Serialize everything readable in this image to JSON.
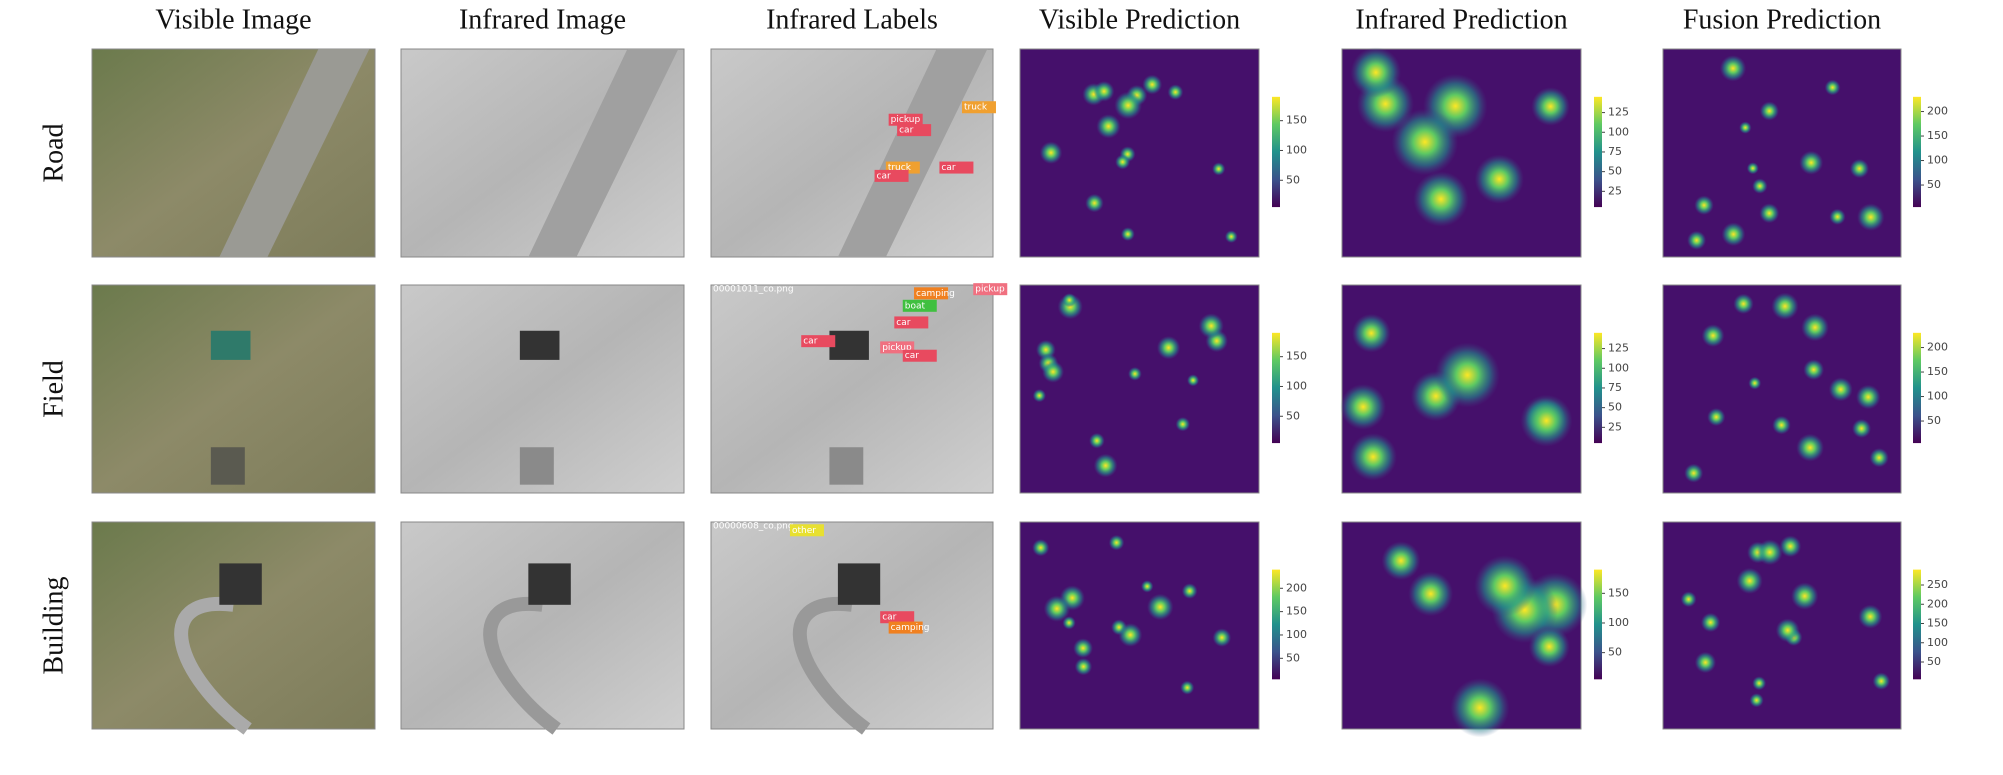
{
  "columns": [
    "Visible Image",
    "Infrared Image",
    "Infrared Labels",
    "Visible Prediction",
    "Infrared Prediction",
    "Fusion Prediction"
  ],
  "rows": [
    {
      "label": "Road",
      "image_labels": [
        "pickup",
        "car",
        "truck",
        "truck",
        "car",
        "car"
      ],
      "colorbars": [
        {
          "lim": [
            5,
            190
          ],
          "ticks": [
            50,
            100,
            150
          ]
        },
        {
          "lim": [
            5,
            145
          ],
          "ticks": [
            25,
            50,
            75,
            100,
            125
          ]
        },
        {
          "lim": [
            5,
            230
          ],
          "ticks": [
            50,
            100,
            150,
            200
          ]
        }
      ]
    },
    {
      "label": "Field",
      "image_labels": [
        "00001011_co.png",
        "camping",
        "pickup",
        "boat",
        "car",
        "car",
        "pickup",
        "car"
      ],
      "colorbars": [
        {
          "lim": [
            5,
            190
          ],
          "ticks": [
            50,
            100,
            150
          ]
        },
        {
          "lim": [
            5,
            145
          ],
          "ticks": [
            25,
            50,
            75,
            100,
            125
          ]
        },
        {
          "lim": [
            5,
            230
          ],
          "ticks": [
            50,
            100,
            150,
            200
          ]
        }
      ]
    },
    {
      "label": "Building",
      "image_labels": [
        "00000608_co.png",
        "other",
        "car",
        "camping"
      ],
      "colorbars": [
        {
          "lim": [
            5,
            240
          ],
          "ticks": [
            50,
            100,
            150,
            200
          ]
        },
        {
          "lim": [
            5,
            190
          ],
          "ticks": [
            50,
            100,
            150
          ]
        },
        {
          "lim": [
            5,
            290
          ],
          "ticks": [
            50,
            100,
            150,
            200,
            250
          ]
        }
      ]
    }
  ]
}
